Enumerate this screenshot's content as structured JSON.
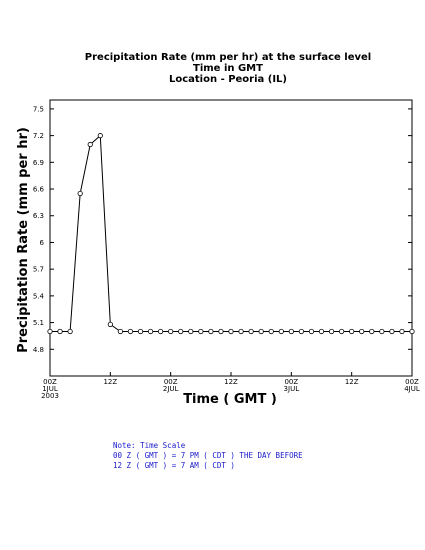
{
  "chart_data": {
    "type": "line",
    "title": "Precipitation Rate (mm per hr) at the surface level",
    "subtitle_lines": [
      "Time in GMT",
      "Location - Peoria (IL)"
    ],
    "ylabel": "Precipitation Rate (mm per hr)",
    "xlabel": "Time ( GMT )",
    "ylim": [
      4.5,
      7.6
    ],
    "yticks": [
      "4.8",
      "5.1",
      "5.4",
      "5.7",
      "6",
      "6.3",
      "6.6",
      "6.9",
      "7.2",
      "7.5"
    ],
    "xlim": [
      0,
      72
    ],
    "xticks": [
      {
        "hour": 0,
        "lines": [
          "00Z",
          "1JUL",
          "2003"
        ]
      },
      {
        "hour": 12,
        "lines": [
          "12Z"
        ]
      },
      {
        "hour": 24,
        "lines": [
          "00Z",
          "2JUL"
        ]
      },
      {
        "hour": 36,
        "lines": [
          "12Z"
        ]
      },
      {
        "hour": 48,
        "lines": [
          "00Z",
          "3JUL"
        ]
      },
      {
        "hour": 60,
        "lines": [
          "12Z"
        ]
      },
      {
        "hour": 72,
        "lines": [
          "00Z",
          "4JUL"
        ]
      }
    ],
    "grid": false,
    "series": [
      {
        "hours": [
          0,
          2,
          4,
          6,
          8,
          10,
          12,
          14,
          16,
          18,
          20,
          22,
          24,
          26,
          28,
          30,
          32,
          34,
          36,
          38,
          40,
          42,
          44,
          46,
          48,
          50,
          52,
          54,
          56,
          58,
          60,
          62,
          64,
          66,
          68,
          70,
          72
        ],
        "values": [
          5.0,
          5.0,
          5.0,
          6.55,
          7.1,
          7.2,
          5.08,
          5.0,
          5.0,
          5.0,
          5.0,
          5.0,
          5.0,
          5.0,
          5.0,
          5.0,
          5.0,
          5.0,
          5.0,
          5.0,
          5.0,
          5.0,
          5.0,
          5.0,
          5.0,
          5.0,
          5.0,
          5.0,
          5.0,
          5.0,
          5.0,
          5.0,
          5.0,
          5.0,
          5.0,
          5.0,
          5.0
        ]
      }
    ]
  },
  "note": {
    "lines": [
      "Note: Time Scale",
      "00 Z ( GMT ) = 7 PM ( CDT ) THE DAY BEFORE",
      "12 Z ( GMT ) = 7 AM ( CDT )"
    ]
  }
}
